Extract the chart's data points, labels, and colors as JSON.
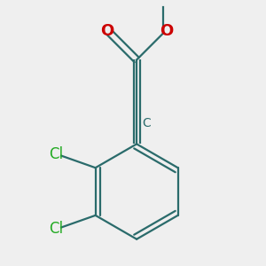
{
  "background_color": "#efefef",
  "bond_color": "#2a6b6b",
  "atom_colors": {
    "C": "#2a6b6b",
    "O": "#cc0000",
    "Cl": "#22aa22",
    "methyl": "#2a6b6b"
  },
  "line_width": 1.6,
  "font_size_atom": 12,
  "font_size_C": 10
}
